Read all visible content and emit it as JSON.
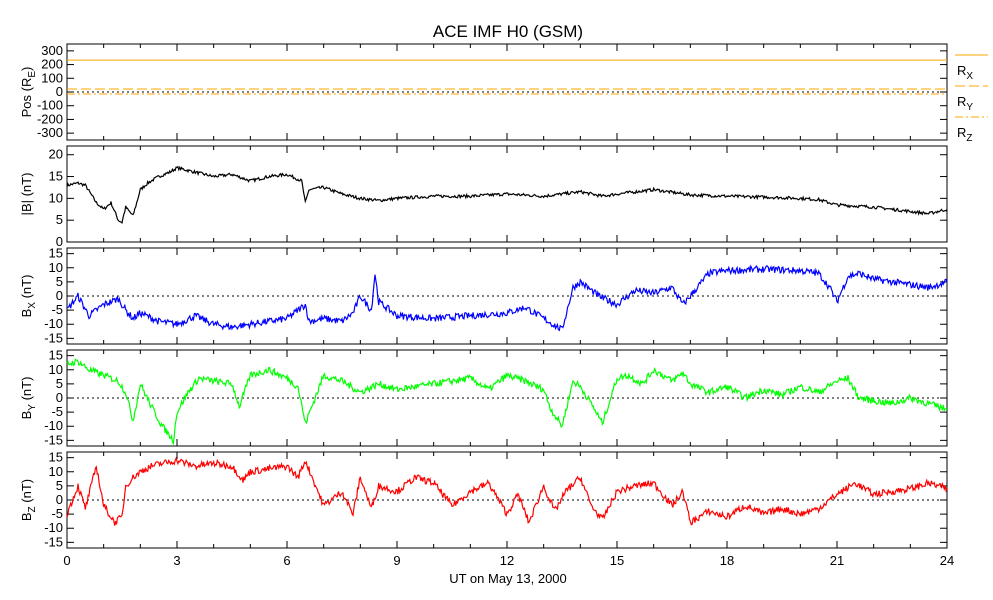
{
  "chart_data": {
    "type": "line",
    "title": "ACE IMF H0 (GSM)",
    "xlabel": "UT on May 13, 2000",
    "xlim": [
      0,
      24
    ],
    "x_ticks": [
      "0",
      "3",
      "6",
      "9",
      "12",
      "15",
      "18",
      "21",
      "24"
    ],
    "panels": [
      {
        "id": "pos",
        "ylabel": "Pos (R",
        "ylabel_sub": "E",
        "ylabel_tail": ")",
        "ylim": [
          -350,
          350
        ],
        "y_ticks": [
          "300",
          "200",
          "100",
          "0",
          "-100",
          "-200",
          "-300"
        ],
        "y_tick_values": [
          300,
          200,
          100,
          0,
          -100,
          -200,
          -300
        ],
        "series": [
          {
            "name": "R",
            "sub": "X",
            "color": "#ffa500",
            "dash": "solid",
            "values": [
              232,
              232
            ]
          },
          {
            "name": "R",
            "sub": "Y",
            "color": "#ffa500",
            "dash": "long",
            "values": [
              22,
              22
            ]
          },
          {
            "name": "R",
            "sub": "Z",
            "color": "#ffa500",
            "dash": "dashdot",
            "values": [
              -15,
              -15
            ]
          }
        ]
      },
      {
        "id": "btot",
        "ylabel": "|B| (nT)",
        "ylim": [
          0,
          22
        ],
        "y_ticks": [
          "20",
          "15",
          "10",
          "5",
          "0"
        ],
        "y_tick_values": [
          20,
          15,
          10,
          5,
          0
        ],
        "series": [
          {
            "color": "#000000",
            "x": [
              0,
              0.3,
              0.5,
              0.8,
              1.0,
              1.2,
              1.4,
              1.5,
              1.6,
              1.8,
              2.0,
              2.2,
              2.5,
              2.8,
              3.0,
              3.5,
              4.0,
              4.5,
              5.0,
              5.5,
              6.0,
              6.4,
              6.5,
              6.6,
              7.0,
              7.5,
              8.0,
              8.5,
              9.0,
              10,
              11,
              12,
              13,
              14,
              14.6,
              15,
              16,
              17,
              18,
              19,
              20,
              20.5,
              21,
              22,
              23,
              23.5,
              24
            ],
            "values": [
              13,
              13.5,
              13,
              9,
              7.5,
              9,
              5,
              4.5,
              8,
              6,
              12,
              13.5,
              15,
              16,
              17,
              16,
              15,
              15.5,
              14,
              15,
              15.5,
              14,
              9,
              12,
              12.5,
              11,
              10,
              9.5,
              10,
              10.5,
              10.5,
              11,
              10.5,
              11.5,
              10.5,
              11,
              12,
              10.8,
              10.5,
              10.3,
              10,
              9.7,
              8.5,
              8,
              7,
              6.5,
              7.5
            ]
          }
        ]
      },
      {
        "id": "bx",
        "ylabel": "B",
        "ylabel_sub": "X",
        "ylabel_tail": " (nT)",
        "ylim": [
          -17,
          17
        ],
        "y_ticks": [
          "15",
          "10",
          "5",
          "0",
          "-5",
          "-10",
          "-15"
        ],
        "y_tick_values": [
          15,
          10,
          5,
          0,
          -5,
          -10,
          -15
        ],
        "series": [
          {
            "color": "#0000ff",
            "x": [
              0,
              0.3,
              0.6,
              1.0,
              1.4,
              1.6,
              1.8,
              2.0,
              2.5,
              3.0,
              3.5,
              4.0,
              4.5,
              5.0,
              5.5,
              6.0,
              6.5,
              6.6,
              7.0,
              7.5,
              7.8,
              8.0,
              8.3,
              8.4,
              8.5,
              9.0,
              10,
              11,
              12,
              12.5,
              13,
              13.5,
              13.8,
              14,
              14.5,
              15,
              15.5,
              16,
              16.5,
              16.8,
              17,
              17.5,
              18,
              19,
              20,
              20.5,
              20.8,
              21,
              21.3,
              21.6,
              22,
              22.5,
              23,
              23.5,
              24
            ],
            "values": [
              -5,
              0,
              -7,
              -3,
              -1,
              -5,
              -8,
              -6,
              -9,
              -10,
              -7,
              -10,
              -11,
              -10,
              -9,
              -8,
              -3,
              -9,
              -8,
              -9,
              -6,
              0,
              -5,
              8,
              -2,
              -7,
              -8,
              -7,
              -6,
              -4,
              -8,
              -12,
              3,
              5,
              0,
              -3,
              2,
              1,
              3,
              -3,
              0,
              8,
              9,
              9.5,
              9,
              8,
              3,
              -2,
              7,
              8,
              6,
              5,
              4,
              3,
              5
            ]
          }
        ]
      },
      {
        "id": "by",
        "ylabel": "B",
        "ylabel_sub": "Y",
        "ylabel_tail": " (nT)",
        "ylim": [
          -17,
          17
        ],
        "y_ticks": [
          "15",
          "10",
          "5",
          "0",
          "-5",
          "-10",
          "-15"
        ],
        "y_tick_values": [
          15,
          10,
          5,
          0,
          -5,
          -10,
          -15
        ],
        "series": [
          {
            "color": "#00ff00",
            "x": [
              0,
              0.3,
              0.6,
              1.0,
              1.4,
              1.6,
              1.8,
              2.0,
              2.3,
              2.6,
              2.9,
              3.0,
              3.3,
              3.6,
              4.0,
              4.5,
              4.7,
              5.0,
              5.5,
              6.0,
              6.3,
              6.5,
              7.0,
              7.5,
              8.0,
              8.5,
              9.0,
              10,
              11,
              11.5,
              12,
              12.5,
              13,
              13.2,
              13.5,
              13.8,
              14,
              14.3,
              14.6,
              15,
              15.3,
              15.7,
              16,
              16.5,
              16.8,
              17,
              17.5,
              18,
              18.5,
              19,
              19.5,
              20,
              20.5,
              21,
              21.3,
              21.6,
              22,
              22.5,
              23,
              23.5,
              24
            ],
            "values": [
              12,
              13,
              10,
              8,
              6,
              2,
              -8,
              5,
              -3,
              -10,
              -15,
              -5,
              2,
              7,
              6,
              5,
              -3,
              8,
              10,
              7,
              4,
              -9,
              8,
              6,
              2,
              5,
              3,
              5,
              7,
              3,
              8,
              6,
              3,
              -4,
              -10,
              6,
              4,
              -2,
              -9,
              7,
              8,
              5,
              10,
              6,
              9,
              5,
              2,
              4,
              0,
              3,
              1,
              4,
              2,
              6,
              7,
              0,
              -1,
              -2,
              0,
              -2,
              -4
            ]
          }
        ]
      },
      {
        "id": "bz",
        "ylabel": "B",
        "ylabel_sub": "Z",
        "ylabel_tail": " (nT)",
        "ylim": [
          -17,
          17
        ],
        "y_ticks": [
          "15",
          "10",
          "5",
          "0",
          "-5",
          "-10",
          "-15"
        ],
        "y_tick_values": [
          15,
          10,
          5,
          0,
          -5,
          -10,
          -15
        ],
        "series": [
          {
            "color": "#ff0000",
            "x": [
              0,
              0.3,
              0.5,
              0.8,
              1.0,
              1.3,
              1.5,
              1.6,
              1.8,
              2.0,
              2.3,
              2.6,
              3.0,
              3.5,
              4.0,
              4.5,
              4.8,
              5.0,
              5.5,
              6.0,
              6.3,
              6.5,
              7.0,
              7.5,
              7.8,
              8.0,
              8.3,
              8.5,
              9.0,
              9.5,
              10,
              10.5,
              11,
              11.5,
              12,
              12.3,
              12.6,
              13,
              13.3,
              13.6,
              14,
              14.3,
              14.6,
              15,
              15.5,
              16,
              16.5,
              16.8,
              17,
              17.5,
              18,
              18.5,
              19,
              19.5,
              20,
              20.5,
              21,
              21.5,
              22,
              22.5,
              23,
              23.5,
              24
            ],
            "values": [
              -5,
              5,
              -3,
              12,
              -2,
              -8,
              -6,
              5,
              8,
              10,
              12,
              13,
              14,
              12,
              13,
              12,
              7,
              10,
              11,
              12,
              8,
              14,
              -2,
              3,
              -5,
              8,
              -3,
              5,
              3,
              8,
              6,
              -2,
              3,
              6,
              -5,
              2,
              -8,
              5,
              -4,
              3,
              8,
              -2,
              -7,
              3,
              5,
              6,
              -2,
              3,
              -8,
              -4,
              -6,
              -2,
              -5,
              -3,
              -5,
              -3,
              2,
              6,
              2,
              3,
              4,
              6,
              4
            ]
          }
        ]
      }
    ]
  }
}
